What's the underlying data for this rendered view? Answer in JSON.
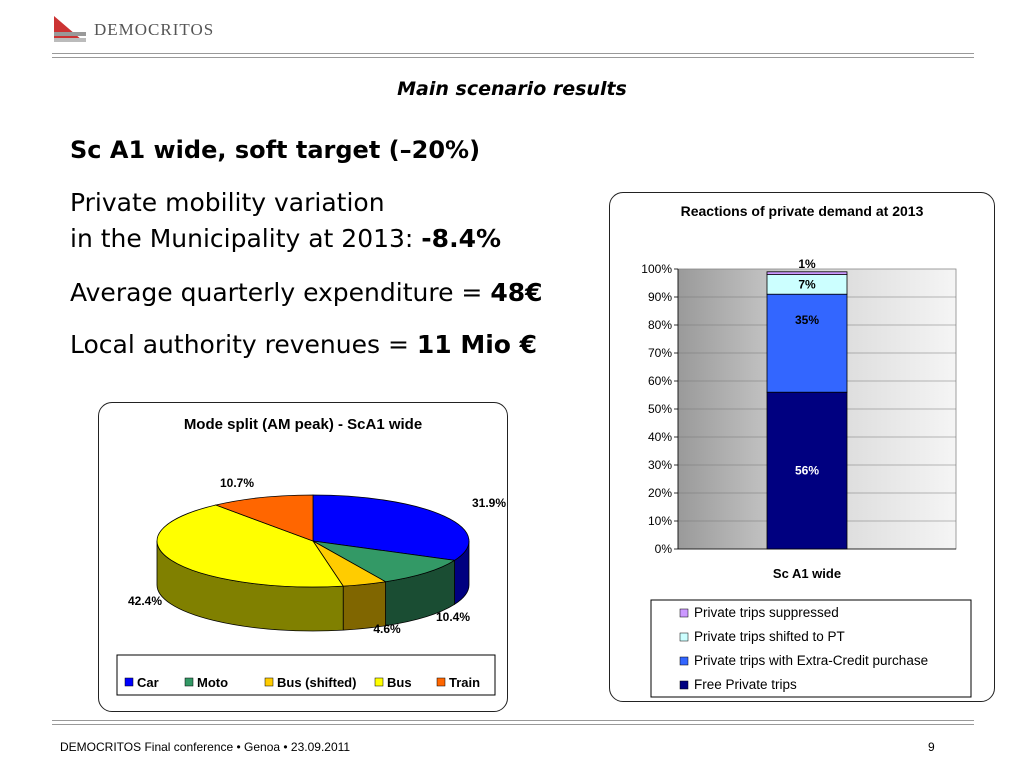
{
  "header": {
    "logo_text": "DEMOCRITOS",
    "slide_title": "Main scenario results"
  },
  "content": {
    "heading": "Sc A1 wide, soft target (–20%)",
    "mobility_label_1": "Private mobility variation",
    "mobility_label_2": "in the Municipality at 2013: ",
    "mobility_value": "-8.4%",
    "expenditure_label": "Average quarterly expenditure = ",
    "expenditure_value": "48€",
    "revenues_label": "Local authority revenues = ",
    "revenues_value": "11 Mio €"
  },
  "footer": {
    "text": "DEMOCRITOS Final conference • Genoa • 23.09.2011",
    "page": "9"
  },
  "chart_data": [
    {
      "type": "pie",
      "title": "Mode split (AM peak) - ScA1 wide",
      "labels": [
        "Car",
        "Moto",
        "Bus (shifted)",
        "Bus",
        "Train"
      ],
      "values": [
        31.9,
        10.4,
        4.6,
        42.4,
        10.7
      ],
      "data_labels": [
        "31.9%",
        "10.4%",
        "4.6%",
        "42.4%",
        "10.7%"
      ],
      "colors": [
        "#0000ff",
        "#339966",
        "#ffcc00",
        "#ffff00",
        "#ff6600"
      ],
      "legend_position": "bottom"
    },
    {
      "type": "bar",
      "stacked": true,
      "title": "Reactions of private demand at 2013",
      "categories": [
        "Sc A1   wide"
      ],
      "series": [
        {
          "name": "Free Private trips",
          "values": [
            56
          ],
          "label": "56%",
          "color": "#000080"
        },
        {
          "name": "Private trips with Extra-Credit purchase",
          "values": [
            35
          ],
          "label": "35%",
          "color": "#3366ff"
        },
        {
          "name": "Private trips shifted to PT",
          "values": [
            7
          ],
          "label": "7%",
          "color": "#ccffff"
        },
        {
          "name": "Private trips suppressed",
          "values": [
            1
          ],
          "label": "1%",
          "color": "#cc99ff"
        }
      ],
      "y_ticks": [
        "0%",
        "10%",
        "20%",
        "30%",
        "40%",
        "50%",
        "60%",
        "70%",
        "80%",
        "90%",
        "100%"
      ],
      "ylim": [
        0,
        100
      ],
      "legend_order": [
        "Private trips suppressed",
        "Private trips shifted to PT",
        "Private trips with Extra-Credit purchase",
        "Free Private trips"
      ],
      "legend_position": "bottom"
    }
  ]
}
